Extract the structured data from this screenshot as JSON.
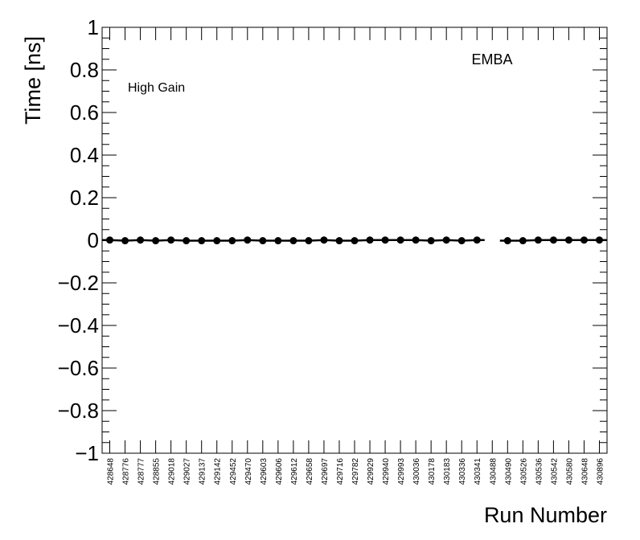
{
  "chart_data": {
    "type": "line",
    "x_label": "Run Number",
    "y_label": "Time [ns]",
    "annotations": [
      "EMBA",
      "High Gain"
    ],
    "categories": [
      "428648",
      "428776",
      "428777",
      "428855",
      "429018",
      "429027",
      "429137",
      "429142",
      "429452",
      "429470",
      "429603",
      "429606",
      "429612",
      "429658",
      "429697",
      "429716",
      "429782",
      "429929",
      "429940",
      "429993",
      "430036",
      "430178",
      "430183",
      "430336",
      "430341",
      "430488",
      "430490",
      "430526",
      "430536",
      "430542",
      "430580",
      "430648",
      "430896"
    ],
    "series": [
      {
        "name": "High Gain",
        "color": "#000000",
        "values": [
          0.001,
          -0.002,
          0.001,
          -0.002,
          0.001,
          -0.002,
          -0.002,
          -0.002,
          -0.002,
          0.001,
          -0.002,
          -0.002,
          -0.002,
          -0.002,
          0.001,
          -0.002,
          -0.002,
          0.001,
          0.001,
          0.001,
          0.001,
          -0.002,
          0.001,
          -0.002,
          0.001,
          null,
          -0.002,
          -0.002,
          0.001,
          0.001,
          0.001,
          0.001,
          0.001
        ]
      }
    ],
    "ylim": [
      -1,
      1
    ],
    "yticks": [
      {
        "value": -1,
        "label": "−1"
      },
      {
        "value": -0.8,
        "label": "−0.8"
      },
      {
        "value": -0.6,
        "label": "−0.6"
      },
      {
        "value": -0.4,
        "label": "−0.4"
      },
      {
        "value": -0.2,
        "label": "−0.2"
      },
      0,
      0.2,
      0.4,
      0.6,
      0.8,
      1
    ]
  }
}
